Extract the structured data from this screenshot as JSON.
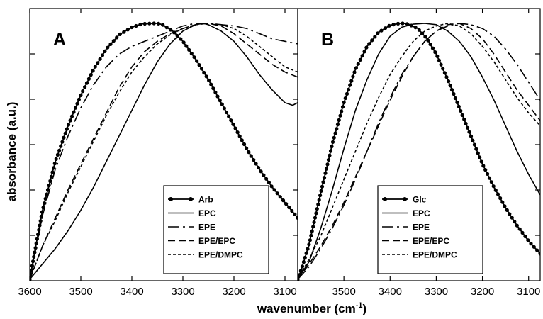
{
  "chart_data": {
    "type": "line",
    "xlabel": "wavenumber (cm",
    "xlabel_superscript": "-1",
    "xlabel_suffix": ")",
    "ylabel": "absorbance (a.u.)",
    "x_axis": "reversed",
    "xlim": [
      3600,
      3075
    ],
    "ylim": [
      0,
      1
    ],
    "y_tick_labels": "none",
    "grid": false,
    "panels": [
      {
        "letter": "A",
        "legend_position": "bottom-right",
        "x_ticks": [
          3600,
          3500,
          3400,
          3300,
          3200,
          3100
        ],
        "series": [
          {
            "name": "Arb",
            "style": "solid-with-dots",
            "x": [
              3600,
              3590,
              3575,
              3550,
              3525,
              3500,
              3475,
              3450,
              3425,
              3400,
              3380,
              3360,
              3350,
              3340,
              3320,
              3300,
              3275,
              3250,
              3225,
              3200,
              3175,
              3150,
              3125,
              3100,
              3075
            ],
            "y": [
              0,
              0.11,
              0.27,
              0.46,
              0.6,
              0.72,
              0.82,
              0.9,
              0.955,
              0.985,
              0.998,
              1.0,
              1.0,
              0.995,
              0.97,
              0.93,
              0.86,
              0.78,
              0.69,
              0.6,
              0.51,
              0.43,
              0.36,
              0.3,
              0.24
            ]
          },
          {
            "name": "EPC",
            "style": "solid",
            "x": [
              3600,
              3575,
              3550,
              3525,
              3500,
              3475,
              3450,
              3425,
              3400,
              3375,
              3350,
              3325,
              3300,
              3275,
              3260,
              3250,
              3225,
              3200,
              3175,
              3150,
              3125,
              3100,
              3085,
              3075
            ],
            "y": [
              0,
              0.06,
              0.12,
              0.19,
              0.27,
              0.36,
              0.46,
              0.56,
              0.66,
              0.76,
              0.85,
              0.92,
              0.97,
              0.995,
              1.0,
              0.995,
              0.97,
              0.93,
              0.87,
              0.8,
              0.74,
              0.69,
              0.68,
              0.69
            ]
          },
          {
            "name": "EPE",
            "style": "long-dash",
            "x": [
              3600,
              3575,
              3550,
              3525,
              3500,
              3475,
              3450,
              3425,
              3400,
              3375,
              3350,
              3325,
              3300,
              3275,
              3250,
              3225,
              3200,
              3175,
              3150,
              3125,
              3100,
              3075
            ],
            "y": [
              0,
              0.25,
              0.43,
              0.56,
              0.67,
              0.76,
              0.83,
              0.88,
              0.91,
              0.93,
              0.95,
              0.97,
              0.99,
              1.0,
              1.0,
              0.995,
              0.99,
              0.98,
              0.96,
              0.94,
              0.93,
              0.92
            ]
          },
          {
            "name": "EPE/EPC",
            "style": "dash",
            "x": [
              3600,
              3575,
              3550,
              3525,
              3500,
              3475,
              3450,
              3425,
              3400,
              3375,
              3350,
              3325,
              3300,
              3275,
              3250,
              3225,
              3200,
              3175,
              3150,
              3125,
              3100,
              3075
            ],
            "y": [
              0,
              0.13,
              0.24,
              0.35,
              0.45,
              0.55,
              0.65,
              0.75,
              0.83,
              0.89,
              0.93,
              0.96,
              0.98,
              0.995,
              1.0,
              0.99,
              0.96,
              0.92,
              0.88,
              0.84,
              0.81,
              0.79
            ]
          },
          {
            "name": "EPE/DMPC",
            "style": "short-dash",
            "x": [
              3600,
              3575,
              3550,
              3525,
              3500,
              3475,
              3450,
              3425,
              3400,
              3375,
              3350,
              3325,
              3300,
              3275,
              3250,
              3225,
              3200,
              3175,
              3150,
              3125,
              3100,
              3075
            ],
            "y": [
              0,
              0.13,
              0.23,
              0.34,
              0.44,
              0.54,
              0.64,
              0.73,
              0.81,
              0.87,
              0.92,
              0.955,
              0.98,
              0.995,
              1.0,
              0.995,
              0.98,
              0.95,
              0.91,
              0.87,
              0.83,
              0.81
            ]
          }
        ]
      },
      {
        "letter": "B",
        "legend_position": "bottom-right",
        "x_ticks": [
          3500,
          3400,
          3300,
          3200,
          3100
        ],
        "series": [
          {
            "name": "Glc",
            "style": "solid-with-dots",
            "x": [
              3600,
              3590,
              3575,
              3550,
              3525,
              3500,
              3475,
              3450,
              3425,
              3400,
              3380,
              3370,
              3360,
              3340,
              3320,
              3300,
              3275,
              3250,
              3225,
              3200,
              3175,
              3150,
              3125,
              3100,
              3075
            ],
            "y": [
              0,
              0.05,
              0.14,
              0.34,
              0.53,
              0.69,
              0.82,
              0.91,
              0.965,
              0.993,
              1.0,
              1.0,
              0.997,
              0.98,
              0.94,
              0.88,
              0.78,
              0.67,
              0.56,
              0.45,
              0.36,
              0.28,
              0.21,
              0.15,
              0.1
            ]
          },
          {
            "name": "EPC",
            "style": "solid",
            "x": [
              3600,
              3575,
              3550,
              3525,
              3500,
              3475,
              3450,
              3425,
              3400,
              3375,
              3350,
              3325,
              3300,
              3275,
              3250,
              3225,
              3200,
              3175,
              3150,
              3125,
              3100,
              3075
            ],
            "y": [
              0,
              0.07,
              0.2,
              0.35,
              0.51,
              0.66,
              0.78,
              0.88,
              0.95,
              0.985,
              0.997,
              1.0,
              0.995,
              0.97,
              0.93,
              0.87,
              0.79,
              0.7,
              0.6,
              0.5,
              0.41,
              0.33
            ]
          },
          {
            "name": "EPE",
            "style": "long-dash",
            "x": [
              3600,
              3575,
              3550,
              3525,
              3500,
              3475,
              3450,
              3425,
              3400,
              3375,
              3350,
              3325,
              3300,
              3275,
              3250,
              3225,
              3200,
              3175,
              3150,
              3125,
              3100,
              3075
            ],
            "y": [
              0,
              0.05,
              0.12,
              0.2,
              0.29,
              0.39,
              0.5,
              0.61,
              0.71,
              0.8,
              0.87,
              0.93,
              0.97,
              0.99,
              1.0,
              0.995,
              0.98,
              0.95,
              0.9,
              0.84,
              0.77,
              0.7
            ]
          },
          {
            "name": "EPE/EPC",
            "style": "dash",
            "x": [
              3600,
              3575,
              3550,
              3525,
              3500,
              3475,
              3450,
              3425,
              3400,
              3375,
              3350,
              3325,
              3300,
              3275,
              3250,
              3225,
              3200,
              3175,
              3150,
              3125,
              3100,
              3075
            ],
            "y": [
              0,
              0.06,
              0.13,
              0.21,
              0.3,
              0.4,
              0.5,
              0.6,
              0.7,
              0.79,
              0.87,
              0.93,
              0.97,
              0.995,
              1.0,
              0.98,
              0.94,
              0.88,
              0.81,
              0.74,
              0.68,
              0.62
            ]
          },
          {
            "name": "EPE/DMPC",
            "style": "short-dash",
            "x": [
              3600,
              3575,
              3550,
              3525,
              3500,
              3475,
              3450,
              3425,
              3400,
              3375,
              3350,
              3325,
              3300,
              3275,
              3250,
              3225,
              3200,
              3175,
              3150,
              3125,
              3100,
              3075
            ],
            "y": [
              0,
              0.08,
              0.17,
              0.28,
              0.39,
              0.5,
              0.61,
              0.71,
              0.8,
              0.87,
              0.93,
              0.97,
              0.99,
              1.0,
              0.99,
              0.96,
              0.91,
              0.85,
              0.78,
              0.71,
              0.65,
              0.6
            ]
          }
        ]
      }
    ]
  }
}
